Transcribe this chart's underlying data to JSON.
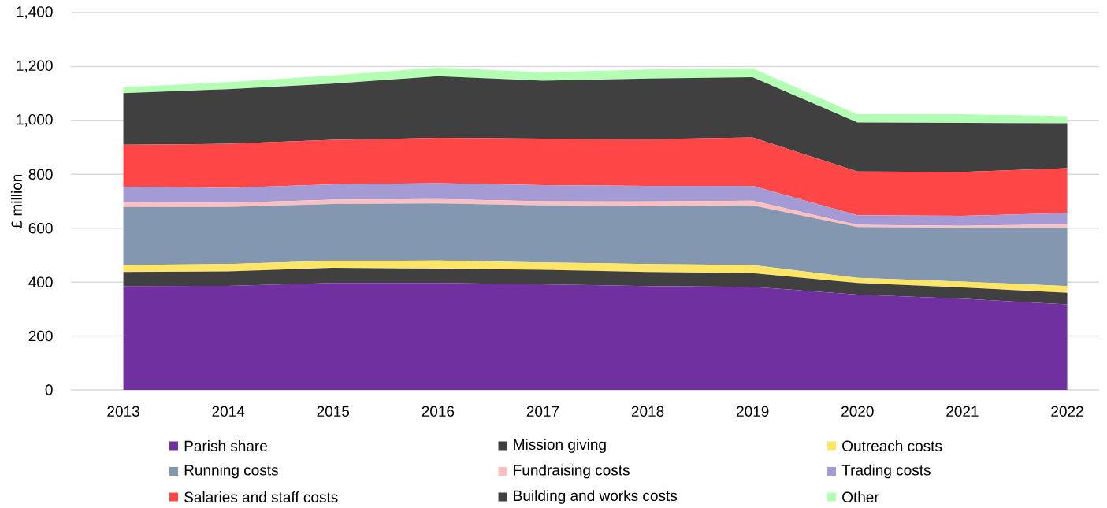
{
  "chart_data": {
    "type": "area",
    "stacked": true,
    "ylabel": "£ million",
    "categories": [
      "2013",
      "2014",
      "2015",
      "2016",
      "2017",
      "2018",
      "2019",
      "2020",
      "2021",
      "2022"
    ],
    "ylim": [
      0,
      1400
    ],
    "yticks": [
      0,
      200,
      400,
      600,
      800,
      {
        "value": 1000,
        "label": "1,000"
      },
      {
        "value": 1200,
        "label": "1,200"
      },
      {
        "value": 1400,
        "label": "1,400"
      }
    ],
    "grid": "y",
    "legend": "bottom",
    "series": [
      {
        "name": "Parish share",
        "color": "#7030a0",
        "values": [
          385,
          386,
          397,
          397,
          392,
          385,
          382,
          354,
          338,
          317
        ]
      },
      {
        "name": "Mission giving",
        "color": "#404040",
        "values": [
          53,
          54,
          56,
          53,
          54,
          53,
          51,
          43,
          42,
          43
        ]
      },
      {
        "name": "Outreach costs",
        "color": "#ffe566",
        "values": [
          25,
          27,
          26,
          30,
          27,
          29,
          30,
          19,
          22,
          25
        ]
      },
      {
        "name": "Running costs",
        "color": "#8497b0",
        "values": [
          216,
          212,
          211,
          212,
          212,
          215,
          222,
          188,
          199,
          216
        ]
      },
      {
        "name": "Fundraising costs",
        "color": "#ffbfbf",
        "values": [
          17,
          15,
          16,
          16,
          15,
          17,
          17,
          8,
          8,
          13
        ]
      },
      {
        "name": "Trading costs",
        "color": "#a59bd4",
        "values": [
          58,
          56,
          57,
          59,
          60,
          58,
          55,
          36,
          37,
          42
        ]
      },
      {
        "name": "Salaries and staff costs",
        "color": "#ff4747",
        "values": [
          156,
          163,
          165,
          168,
          172,
          173,
          180,
          162,
          163,
          167
        ]
      },
      {
        "name": "Building and works costs",
        "color": "#404040",
        "values": [
          191,
          203,
          208,
          229,
          215,
          225,
          223,
          182,
          182,
          166
        ]
      },
      {
        "name": "Other",
        "color": "#b3ffb3",
        "values": [
          22,
          26,
          31,
          32,
          31,
          34,
          33,
          31,
          32,
          27
        ]
      }
    ]
  }
}
